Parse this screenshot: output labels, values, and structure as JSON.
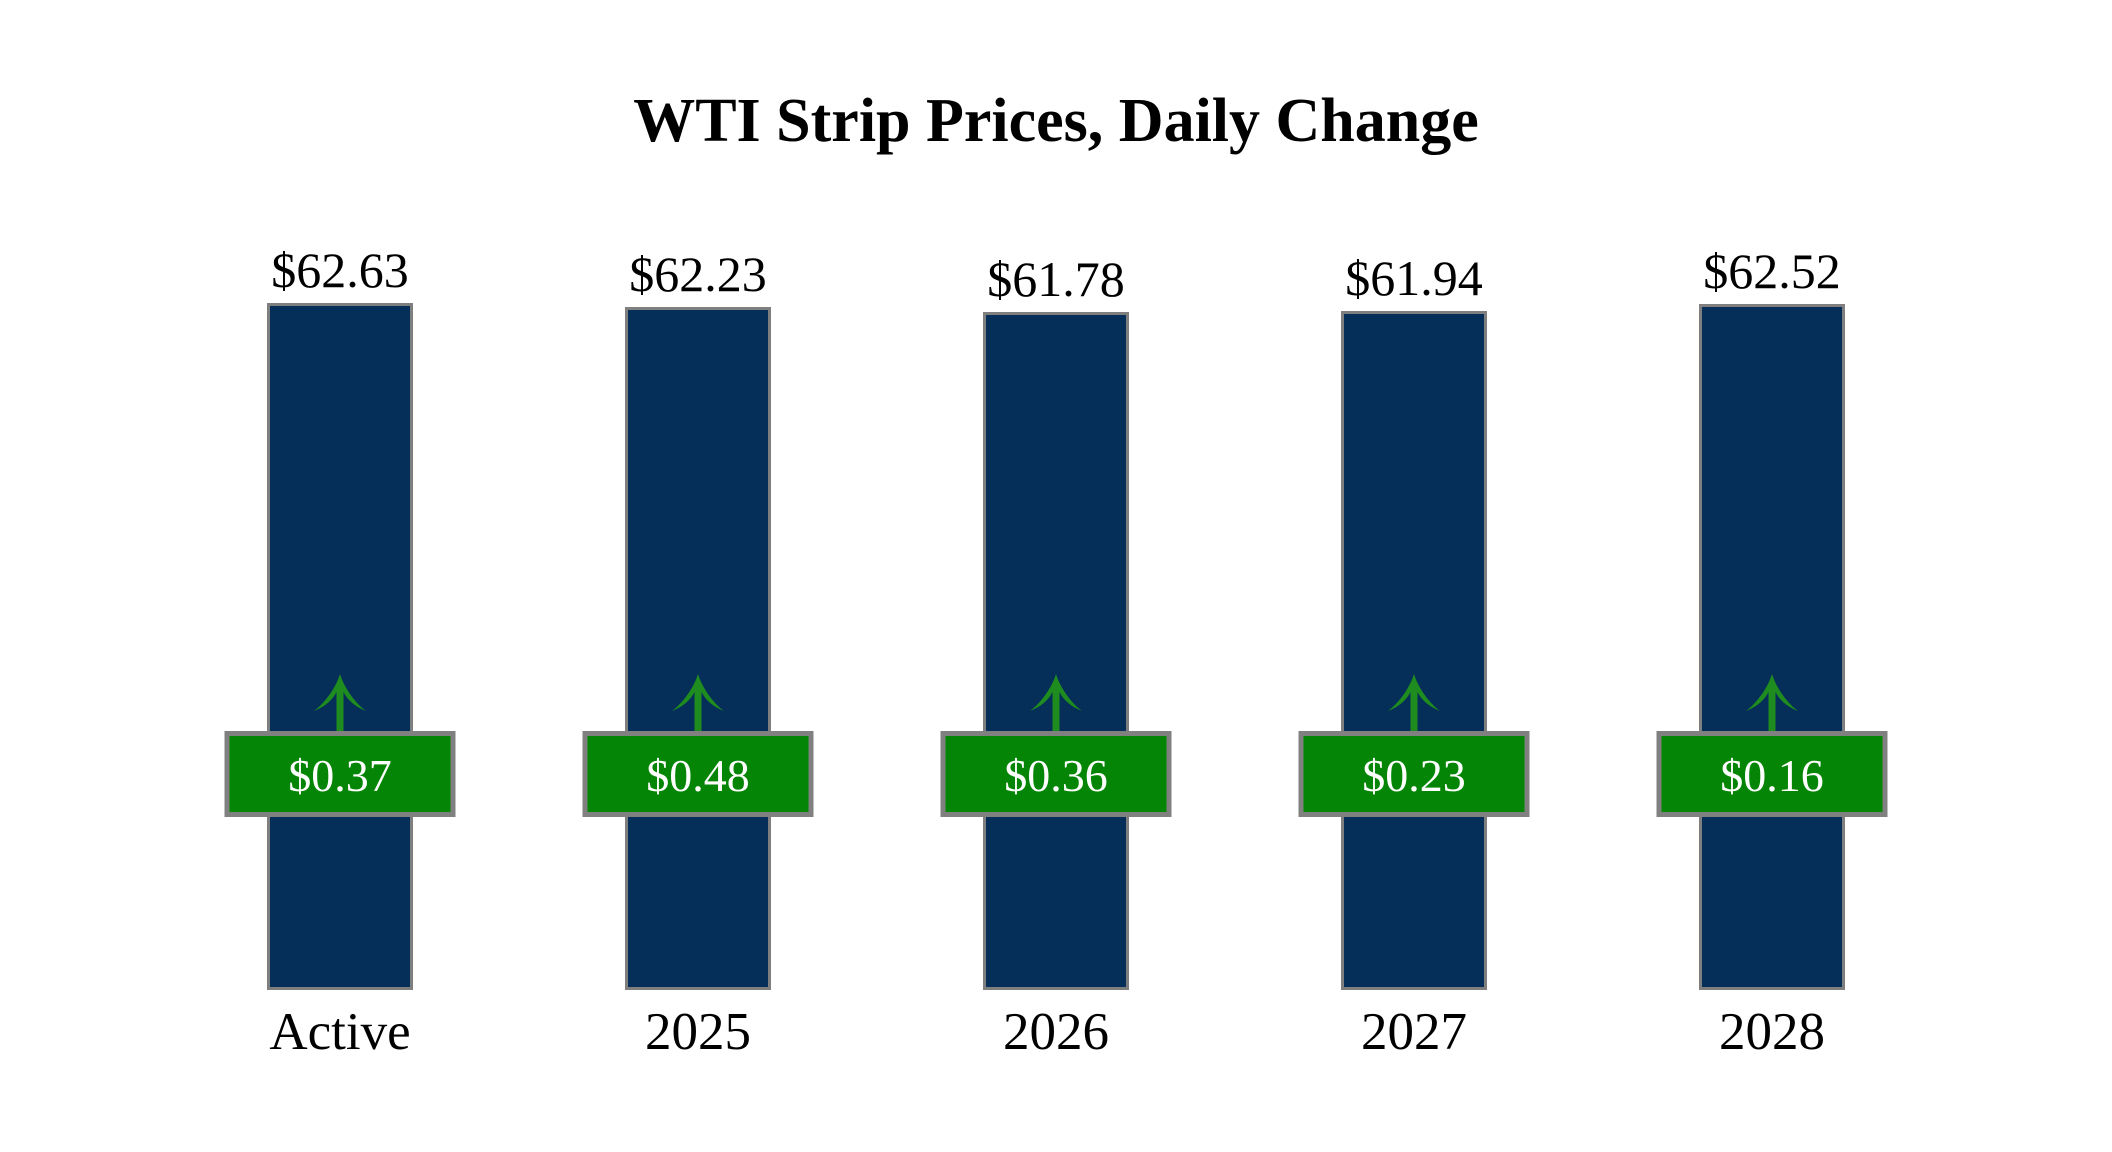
{
  "title": "WTI Strip Prices, Daily Change",
  "colors": {
    "background": "#FFFFFF",
    "bar_fill": "#052E58",
    "bar_border": "#7F7F7F",
    "badge_fill": "#058505",
    "badge_border": "#808080",
    "badge_text": "#FFFFFF",
    "arrow_green": "#1F8C1F",
    "text": "#000000"
  },
  "chart_data": {
    "type": "bar",
    "title": "WTI Strip Prices, Daily Change",
    "categories": [
      "Active",
      "2025",
      "2026",
      "2027",
      "2028"
    ],
    "series": [
      {
        "name": "Strip Price",
        "values": [
          62.63,
          62.23,
          61.78,
          61.94,
          62.52
        ]
      },
      {
        "name": "Daily Change",
        "values": [
          0.37,
          0.48,
          0.36,
          0.23,
          0.16
        ]
      }
    ],
    "price_labels": [
      "$62.63",
      "$62.23",
      "$61.78",
      "$61.94",
      "$62.52"
    ],
    "change_labels": [
      "$0.37",
      "$0.48",
      "$0.36",
      "$0.23",
      "$0.16"
    ],
    "change_direction": [
      "up",
      "up",
      "up",
      "up",
      "up"
    ],
    "ylim": [
      0,
      62.63
    ],
    "grid": false,
    "legend": "none",
    "xlabel": "",
    "ylabel": ""
  }
}
